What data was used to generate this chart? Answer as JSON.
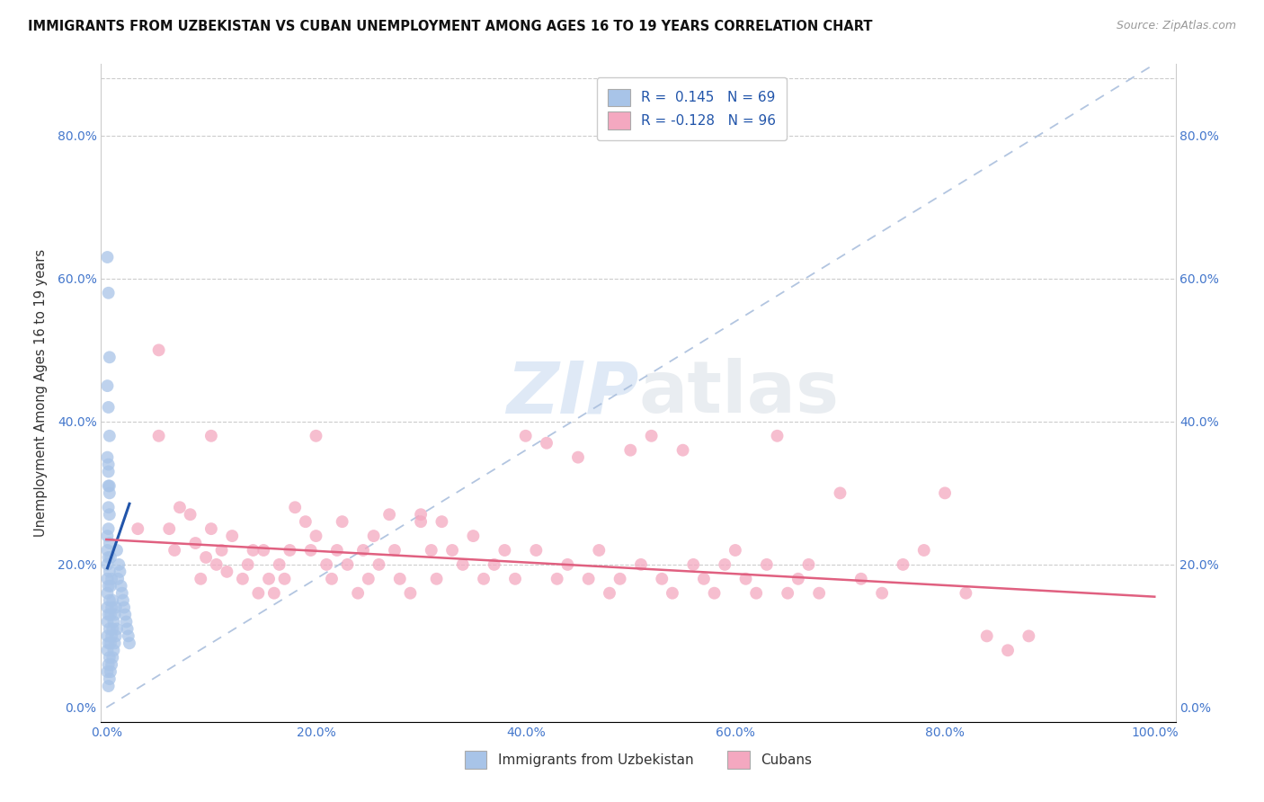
{
  "title": "IMMIGRANTS FROM UZBEKISTAN VS CUBAN UNEMPLOYMENT AMONG AGES 16 TO 19 YEARS CORRELATION CHART",
  "source": "Source: ZipAtlas.com",
  "ylabel": "Unemployment Among Ages 16 to 19 years",
  "blue_color": "#a8c4e8",
  "pink_color": "#f4a8c0",
  "blue_line_color": "#2255aa",
  "pink_line_color": "#e06080",
  "diag_color": "#aabfdd",
  "grid_color": "#cccccc",
  "tick_color": "#4477cc",
  "watermark_color": "#ddeeff",
  "blue_x": [
    0.001,
    0.001,
    0.001,
    0.001,
    0.001,
    0.001,
    0.001,
    0.001,
    0.001,
    0.001,
    0.002,
    0.002,
    0.002,
    0.002,
    0.002,
    0.002,
    0.002,
    0.002,
    0.002,
    0.002,
    0.003,
    0.003,
    0.003,
    0.003,
    0.003,
    0.003,
    0.003,
    0.003,
    0.004,
    0.004,
    0.004,
    0.004,
    0.004,
    0.005,
    0.005,
    0.005,
    0.005,
    0.006,
    0.006,
    0.006,
    0.007,
    0.007,
    0.008,
    0.008,
    0.009,
    0.009,
    0.01,
    0.01,
    0.011,
    0.012,
    0.013,
    0.014,
    0.015,
    0.016,
    0.017,
    0.018,
    0.019,
    0.02,
    0.021,
    0.022,
    0.001,
    0.002,
    0.003,
    0.001,
    0.002,
    0.003,
    0.001,
    0.002,
    0.003
  ],
  "blue_y": [
    0.05,
    0.08,
    0.1,
    0.12,
    0.14,
    0.16,
    0.18,
    0.2,
    0.22,
    0.24,
    0.03,
    0.06,
    0.09,
    0.13,
    0.17,
    0.21,
    0.25,
    0.28,
    0.31,
    0.34,
    0.04,
    0.07,
    0.11,
    0.15,
    0.19,
    0.23,
    0.27,
    0.3,
    0.05,
    0.09,
    0.13,
    0.17,
    0.21,
    0.06,
    0.1,
    0.14,
    0.18,
    0.07,
    0.11,
    0.15,
    0.08,
    0.12,
    0.09,
    0.13,
    0.1,
    0.14,
    0.11,
    0.22,
    0.18,
    0.2,
    0.19,
    0.17,
    0.16,
    0.15,
    0.14,
    0.13,
    0.12,
    0.11,
    0.1,
    0.09,
    0.63,
    0.58,
    0.49,
    0.45,
    0.42,
    0.38,
    0.35,
    0.33,
    0.31
  ],
  "pink_x": [
    0.03,
    0.05,
    0.06,
    0.065,
    0.07,
    0.08,
    0.085,
    0.09,
    0.095,
    0.1,
    0.105,
    0.11,
    0.115,
    0.12,
    0.13,
    0.135,
    0.14,
    0.145,
    0.15,
    0.155,
    0.16,
    0.165,
    0.17,
    0.175,
    0.18,
    0.19,
    0.195,
    0.2,
    0.21,
    0.215,
    0.22,
    0.225,
    0.23,
    0.24,
    0.245,
    0.25,
    0.255,
    0.26,
    0.27,
    0.275,
    0.28,
    0.29,
    0.3,
    0.31,
    0.315,
    0.32,
    0.33,
    0.34,
    0.35,
    0.36,
    0.37,
    0.38,
    0.39,
    0.4,
    0.41,
    0.42,
    0.43,
    0.44,
    0.45,
    0.46,
    0.47,
    0.48,
    0.49,
    0.5,
    0.51,
    0.52,
    0.53,
    0.54,
    0.55,
    0.56,
    0.57,
    0.58,
    0.59,
    0.6,
    0.61,
    0.62,
    0.63,
    0.64,
    0.65,
    0.66,
    0.67,
    0.68,
    0.7,
    0.72,
    0.74,
    0.76,
    0.78,
    0.8,
    0.82,
    0.84,
    0.86,
    0.88,
    0.05,
    0.1,
    0.2,
    0.3
  ],
  "pink_y": [
    0.25,
    0.5,
    0.25,
    0.22,
    0.28,
    0.27,
    0.23,
    0.18,
    0.21,
    0.25,
    0.2,
    0.22,
    0.19,
    0.24,
    0.18,
    0.2,
    0.22,
    0.16,
    0.22,
    0.18,
    0.16,
    0.2,
    0.18,
    0.22,
    0.28,
    0.26,
    0.22,
    0.24,
    0.2,
    0.18,
    0.22,
    0.26,
    0.2,
    0.16,
    0.22,
    0.18,
    0.24,
    0.2,
    0.27,
    0.22,
    0.18,
    0.16,
    0.27,
    0.22,
    0.18,
    0.26,
    0.22,
    0.2,
    0.24,
    0.18,
    0.2,
    0.22,
    0.18,
    0.38,
    0.22,
    0.37,
    0.18,
    0.2,
    0.35,
    0.18,
    0.22,
    0.16,
    0.18,
    0.36,
    0.2,
    0.38,
    0.18,
    0.16,
    0.36,
    0.2,
    0.18,
    0.16,
    0.2,
    0.22,
    0.18,
    0.16,
    0.2,
    0.38,
    0.16,
    0.18,
    0.2,
    0.16,
    0.3,
    0.18,
    0.16,
    0.2,
    0.22,
    0.3,
    0.16,
    0.1,
    0.08,
    0.1,
    0.38,
    0.38,
    0.38,
    0.26
  ]
}
